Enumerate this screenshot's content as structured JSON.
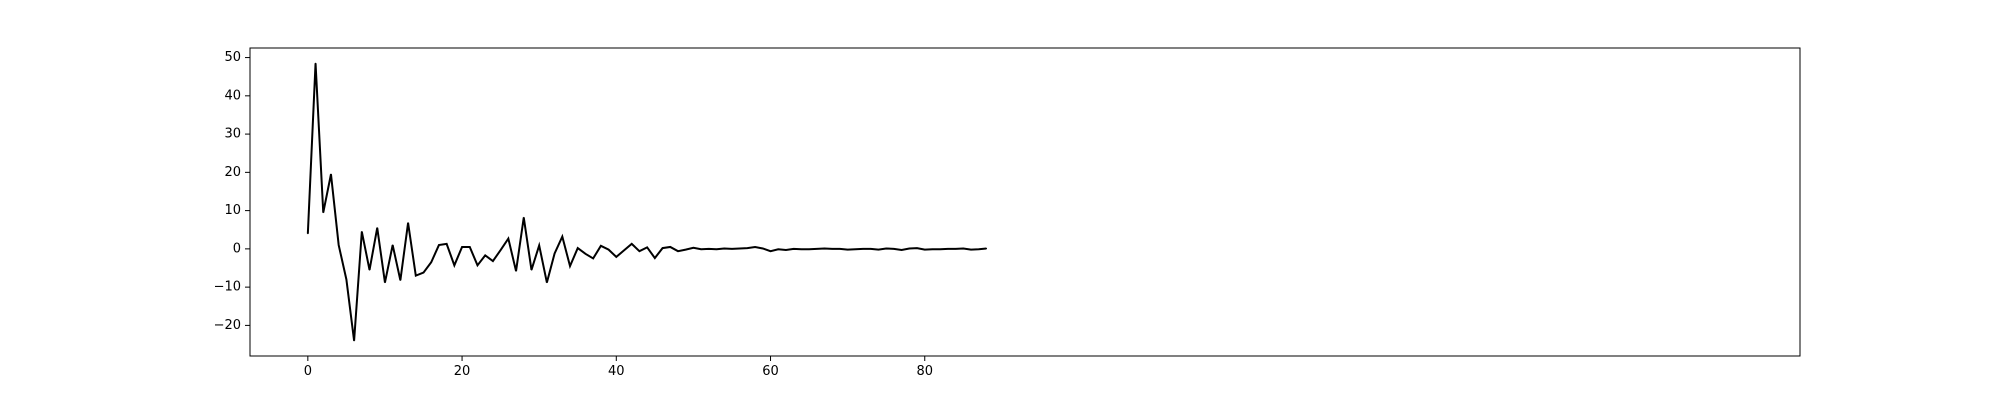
{
  "chart_data": {
    "type": "line",
    "title": "",
    "xlabel": "",
    "ylabel": "",
    "xlim": [
      -7.5,
      193.5
    ],
    "ylim": [
      -28,
      52.5
    ],
    "x_ticks": [
      0,
      20,
      40,
      60,
      80
    ],
    "x_tick_labels": [
      "0",
      "20",
      "40",
      "60",
      "80"
    ],
    "y_ticks": [
      -20,
      -10,
      0,
      10,
      20,
      30,
      40,
      50
    ],
    "y_tick_labels": [
      "−20",
      "−10",
      "0",
      "10",
      "20",
      "30",
      "40",
      "50"
    ],
    "grid": false,
    "line_color": "#000000",
    "series": [
      {
        "x": [
          0,
          1,
          2,
          3,
          4,
          5,
          6,
          7,
          8,
          9,
          10,
          11,
          12,
          13,
          14,
          15,
          16,
          17,
          18,
          19,
          20,
          21,
          22,
          23,
          24,
          25,
          26,
          27,
          28,
          29,
          30,
          31,
          32,
          33,
          34,
          35,
          36,
          37,
          38,
          39,
          40,
          41,
          42,
          43,
          44,
          45,
          46,
          47,
          48,
          49,
          50,
          51,
          52,
          53,
          54,
          55,
          56,
          57,
          58,
          59,
          60,
          61,
          62,
          63,
          64,
          65,
          66,
          67,
          68,
          69,
          70,
          71,
          72,
          73,
          74,
          75,
          76,
          77,
          78,
          79,
          80,
          81,
          82,
          83,
          84,
          85,
          86,
          87,
          88
        ],
        "values": [
          4,
          48.5,
          9.5,
          19.5,
          1,
          -8,
          -24,
          4.5,
          -5.5,
          5.5,
          -8.8,
          1,
          -8.2,
          6.8,
          -7,
          -6.2,
          -3.5,
          1,
          1.3,
          -4.3,
          0.5,
          0.5,
          -4.3,
          -1.7,
          -3.2,
          -0.3,
          2.7,
          -5.8,
          8.2,
          -5.5,
          0.9,
          -8.8,
          -1.2,
          3.2,
          -4.5,
          0.2,
          -1.3,
          -2.5,
          0.8,
          -0.2,
          -2.1,
          -0.4,
          1.3,
          -0.6,
          0.4,
          -2.4,
          0.2,
          0.5,
          -0.6,
          -0.2,
          0.3,
          -0.1,
          0,
          -0.1,
          0.1,
          0,
          0.1,
          0.2,
          0.5,
          0.1,
          -0.6,
          -0.1,
          -0.3,
          0,
          -0.1,
          -0.1,
          0,
          0.1,
          0,
          0,
          -0.2,
          -0.1,
          0,
          0,
          -0.2,
          0.1,
          0,
          -0.3,
          0.1,
          0.2,
          -0.2,
          -0.1,
          -0.1,
          0,
          0,
          0.1,
          -0.2,
          -0.1,
          0.1
        ]
      }
    ]
  }
}
